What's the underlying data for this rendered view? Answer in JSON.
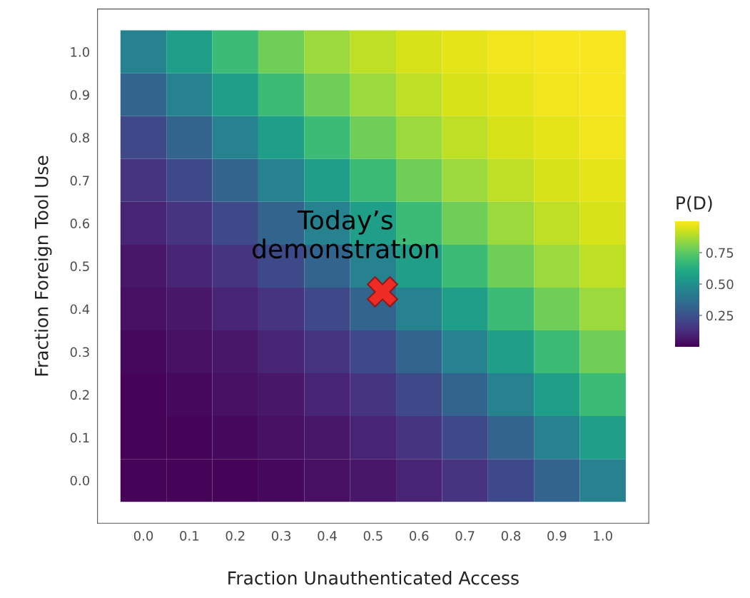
{
  "chart_data": {
    "type": "heatmap",
    "xlabel": "Fraction Unauthenticated Access",
    "ylabel": "Fraction Foreign Tool Use",
    "clabel": "P(D)",
    "categories": [
      "0.0",
      "0.1",
      "0.2",
      "0.3",
      "0.4",
      "0.5",
      "0.6",
      "0.7",
      "0.8",
      "0.9",
      "1.0"
    ],
    "y_categories": [
      "1.0",
      "0.9",
      "0.8",
      "0.7",
      "0.6",
      "0.5",
      "0.4",
      "0.3",
      "0.2",
      "0.1",
      "0.0"
    ],
    "cells": [
      [
        0.44,
        0.56,
        0.68,
        0.78,
        0.85,
        0.9,
        0.94,
        0.96,
        0.98,
        0.99,
        0.99
      ],
      [
        0.32,
        0.44,
        0.56,
        0.68,
        0.78,
        0.85,
        0.9,
        0.94,
        0.96,
        0.98,
        0.99
      ],
      [
        0.22,
        0.32,
        0.44,
        0.56,
        0.68,
        0.78,
        0.85,
        0.9,
        0.94,
        0.96,
        0.98
      ],
      [
        0.15,
        0.22,
        0.32,
        0.44,
        0.56,
        0.68,
        0.78,
        0.85,
        0.9,
        0.94,
        0.96
      ],
      [
        0.1,
        0.15,
        0.22,
        0.32,
        0.44,
        0.56,
        0.68,
        0.78,
        0.85,
        0.9,
        0.94
      ],
      [
        0.06,
        0.1,
        0.15,
        0.22,
        0.32,
        0.44,
        0.56,
        0.68,
        0.78,
        0.85,
        0.9
      ],
      [
        0.04,
        0.06,
        0.1,
        0.15,
        0.22,
        0.32,
        0.44,
        0.56,
        0.68,
        0.78,
        0.85
      ],
      [
        0.02,
        0.04,
        0.06,
        0.1,
        0.15,
        0.22,
        0.32,
        0.44,
        0.56,
        0.68,
        0.78
      ],
      [
        0.01,
        0.02,
        0.04,
        0.06,
        0.1,
        0.15,
        0.22,
        0.32,
        0.44,
        0.56,
        0.68
      ],
      [
        0.01,
        0.01,
        0.02,
        0.04,
        0.06,
        0.1,
        0.15,
        0.22,
        0.32,
        0.44,
        0.56
      ],
      [
        0.01,
        0.01,
        0.01,
        0.02,
        0.04,
        0.06,
        0.1,
        0.15,
        0.22,
        0.32,
        0.44
      ]
    ],
    "clim": [
      0,
      1
    ],
    "cticks": [
      {
        "value": 0.25,
        "label": "0.25"
      },
      {
        "value": 0.5,
        "label": "0.50"
      },
      {
        "value": 0.75,
        "label": "0.75"
      }
    ],
    "annotations": [
      "Today’s\ndemonstration"
    ]
  }
}
